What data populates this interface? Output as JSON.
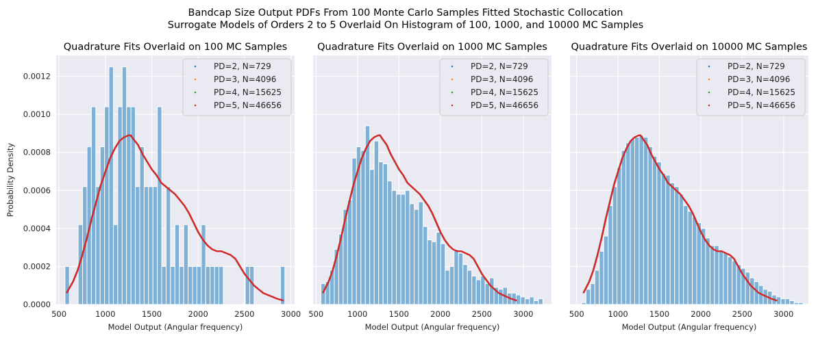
{
  "figure": {
    "suptitle_line1": "Bandcap Size Output PDFs From 100 Monte Carlo Samples Fitted Stochastic Collocation",
    "suptitle_line2": "Surrogate Models of Orders 2 to 5 Overlaid On Histogram of 100, 1000, and 10000 MC Samples"
  },
  "style": {
    "panel_bg": "#eaeaf2",
    "grid": "#ffffff",
    "hist_color": "#7fb0d5",
    "series_colors": [
      "#1f77b4",
      "#ff7f0e",
      "#2ca02c",
      "#d62728"
    ]
  },
  "chart_data": [
    {
      "type": "bar",
      "title": "Quadrature Fits Overlaid on 100 MC Samples",
      "xlabel": "Model Output (Angular frequency)",
      "ylabel": "Probability Density",
      "xlim": [
        470,
        3040
      ],
      "ylim": [
        0,
        0.00131
      ],
      "xticks": [
        500,
        1000,
        1500,
        2000,
        2500,
        3000
      ],
      "yticks": [
        0.0,
        0.0002,
        0.0004,
        0.0006,
        0.0008,
        0.001,
        0.0012
      ],
      "ytick_labels": [
        "0.0000",
        "0.0002",
        "0.0004",
        "0.0006",
        "0.0008",
        "0.0010",
        "0.0012"
      ],
      "show_yticklabels": true,
      "grid": true,
      "legend_position": "top-right",
      "bin_start": 565,
      "bin_width": 47.4,
      "histogram": [
        0.0002,
        0,
        0,
        0.00042,
        0.00062,
        0.00083,
        0.00104,
        0.00062,
        0.00083,
        0.00104,
        0.00125,
        0.00042,
        0.00104,
        0.00125,
        0.00104,
        0.00104,
        0.00062,
        0.00083,
        0.00062,
        0.00062,
        0.00062,
        0.00104,
        0.0002,
        0.00062,
        0.0002,
        0.00042,
        0.0002,
        0.00042,
        0.0002,
        0.0002,
        0.0002,
        0.00042,
        0.0002,
        0.0002,
        0.0002,
        0.0002,
        0,
        0,
        0,
        0,
        0,
        0.0002,
        0.0002,
        0,
        0,
        0,
        0,
        0,
        0,
        0.0002
      ]
    },
    {
      "type": "bar",
      "title": "Quadrature Fits Overlaid on 1000 MC Samples",
      "xlabel": "Model Output (Angular frequency)",
      "ylabel": "",
      "xlim": [
        465,
        3340
      ],
      "ylim": [
        0,
        0.00131
      ],
      "xticks": [
        500,
        1000,
        1500,
        2000,
        2500,
        3000
      ],
      "yticks": [
        0.0,
        0.0002,
        0.0004,
        0.0006,
        0.0008,
        0.001,
        0.0012
      ],
      "show_yticklabels": false,
      "grid": true,
      "legend_position": "top-right",
      "bin_start": 560,
      "bin_width": 53.5,
      "histogram": [
        0.00011,
        0.00012,
        0.00018,
        0.00029,
        0.00037,
        0.0005,
        0.00055,
        0.00077,
        0.00083,
        0.00081,
        0.00094,
        0.00071,
        0.00086,
        0.00075,
        0.00074,
        0.00065,
        0.0006,
        0.00058,
        0.00058,
        0.0006,
        0.00053,
        0.0005,
        0.00054,
        0.00041,
        0.00034,
        0.00033,
        0.00038,
        0.00032,
        0.00018,
        0.0002,
        0.00029,
        0.00027,
        0.00021,
        0.00018,
        0.00015,
        0.00013,
        0.00015,
        0.00011,
        0.00014,
        9e-05,
        8e-05,
        9e-05,
        6e-05,
        6e-05,
        5e-05,
        4e-05,
        3e-05,
        4e-05,
        2e-05,
        3e-05
      ]
    },
    {
      "type": "bar",
      "title": "Quadrature Fits Overlaid on 10000 MC Samples",
      "xlabel": "Model Output (Angular frequency)",
      "ylabel": "",
      "xlim": [
        420,
        3300
      ],
      "ylim": [
        0,
        0.00131
      ],
      "xticks": [
        500,
        1000,
        1500,
        2000,
        2500,
        3000
      ],
      "yticks": [
        0.0,
        0.0002,
        0.0004,
        0.0006,
        0.0008,
        0.001,
        0.0012
      ],
      "show_yticklabels": false,
      "grid": true,
      "legend_position": "top-right",
      "bin_start": 560,
      "bin_width": 53.5,
      "histogram": [
        1e-05,
        8e-05,
        0.00011,
        0.00018,
        0.00028,
        0.00036,
        0.00052,
        0.00062,
        0.00072,
        0.00081,
        0.00085,
        0.00087,
        0.00088,
        0.00089,
        0.00088,
        0.00083,
        0.00078,
        0.00075,
        0.00069,
        0.00068,
        0.00064,
        0.00062,
        0.00058,
        0.00052,
        0.00049,
        0.00046,
        0.00043,
        0.0004,
        0.00035,
        0.00031,
        0.00031,
        0.00028,
        0.00027,
        0.00025,
        0.00023,
        0.00021,
        0.00019,
        0.00017,
        0.00014,
        0.00012,
        0.0001,
        8e-05,
        7e-05,
        5e-05,
        4e-05,
        3e-05,
        3e-05,
        2e-05,
        1e-05,
        1e-05
      ]
    }
  ],
  "series": [
    {
      "name": "PD=2, N=729"
    },
    {
      "name": "PD=3, N=4096"
    },
    {
      "name": "PD=4, N=15625"
    },
    {
      "name": "PD=5, N=46656"
    }
  ],
  "pdf_curve": {
    "x": [
      580,
      650,
      700,
      750,
      800,
      850,
      900,
      950,
      1000,
      1050,
      1100,
      1150,
      1200,
      1250,
      1270,
      1300,
      1350,
      1400,
      1450,
      1500,
      1550,
      1600,
      1650,
      1700,
      1750,
      1800,
      1850,
      1900,
      1950,
      2000,
      2050,
      2100,
      2150,
      2200,
      2250,
      2300,
      2350,
      2400,
      2450,
      2500,
      2550,
      2600,
      2650,
      2700,
      2750,
      2800,
      2850,
      2920
    ],
    "y": [
      6e-05,
      0.00012,
      0.00018,
      0.00026,
      0.00035,
      0.00045,
      0.00054,
      0.00063,
      0.0007,
      0.00077,
      0.00082,
      0.00086,
      0.00088,
      0.00089,
      0.00089,
      0.00087,
      0.00084,
      0.00079,
      0.00075,
      0.00071,
      0.00068,
      0.00064,
      0.00062,
      0.0006,
      0.00058,
      0.00055,
      0.00052,
      0.00048,
      0.00043,
      0.00038,
      0.00034,
      0.00031,
      0.00029,
      0.00028,
      0.00028,
      0.00027,
      0.00026,
      0.00024,
      0.0002,
      0.00016,
      0.00013,
      0.0001,
      8e-05,
      6e-05,
      5e-05,
      4e-05,
      3e-05,
      2e-05
    ]
  }
}
